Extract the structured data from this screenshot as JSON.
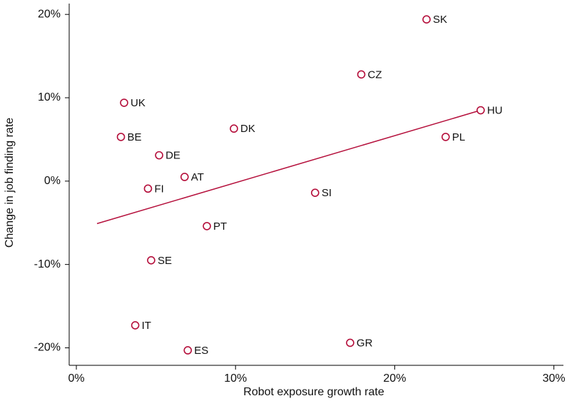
{
  "chart_data": {
    "type": "scatter",
    "x_label": "Robot exposure growth rate",
    "y_label": "Change in job finding rate",
    "point_labels": [
      "SK",
      "CZ",
      "HU",
      "PL",
      "UK",
      "BE",
      "DK",
      "DE",
      "AT",
      "FI",
      "SI",
      "PT",
      "SE",
      "IT",
      "ES",
      "GR"
    ],
    "x": [
      22.0,
      17.9,
      25.4,
      23.2,
      3.0,
      2.8,
      9.9,
      5.2,
      6.8,
      4.5,
      15.0,
      8.2,
      4.7,
      3.7,
      7.0,
      17.2
    ],
    "values": [
      19.4,
      12.8,
      8.5,
      5.3,
      9.4,
      5.3,
      6.3,
      3.1,
      0.5,
      -0.9,
      -1.4,
      -5.4,
      -9.5,
      -17.3,
      -20.3,
      -19.4
    ],
    "color": "#b5103c",
    "fit_line": {
      "x": [
        1.3,
        25.4
      ],
      "values": [
        -5.1,
        8.5
      ]
    },
    "xlim": [
      -0.45,
      30.6
    ],
    "ylim": [
      -22.1,
      21.3
    ],
    "xticks": [
      {
        "value": 0,
        "label": "0%"
      },
      {
        "value": 10,
        "label": "10%"
      },
      {
        "value": 20,
        "label": "20%"
      },
      {
        "value": 30,
        "label": "30%"
      }
    ],
    "yticks": [
      {
        "value": -20,
        "label": "-20%"
      },
      {
        "value": -10,
        "label": "-10%"
      },
      {
        "value": 0,
        "label": "0%"
      },
      {
        "value": 10,
        "label": "10%"
      },
      {
        "value": 20,
        "label": "20%"
      }
    ]
  }
}
